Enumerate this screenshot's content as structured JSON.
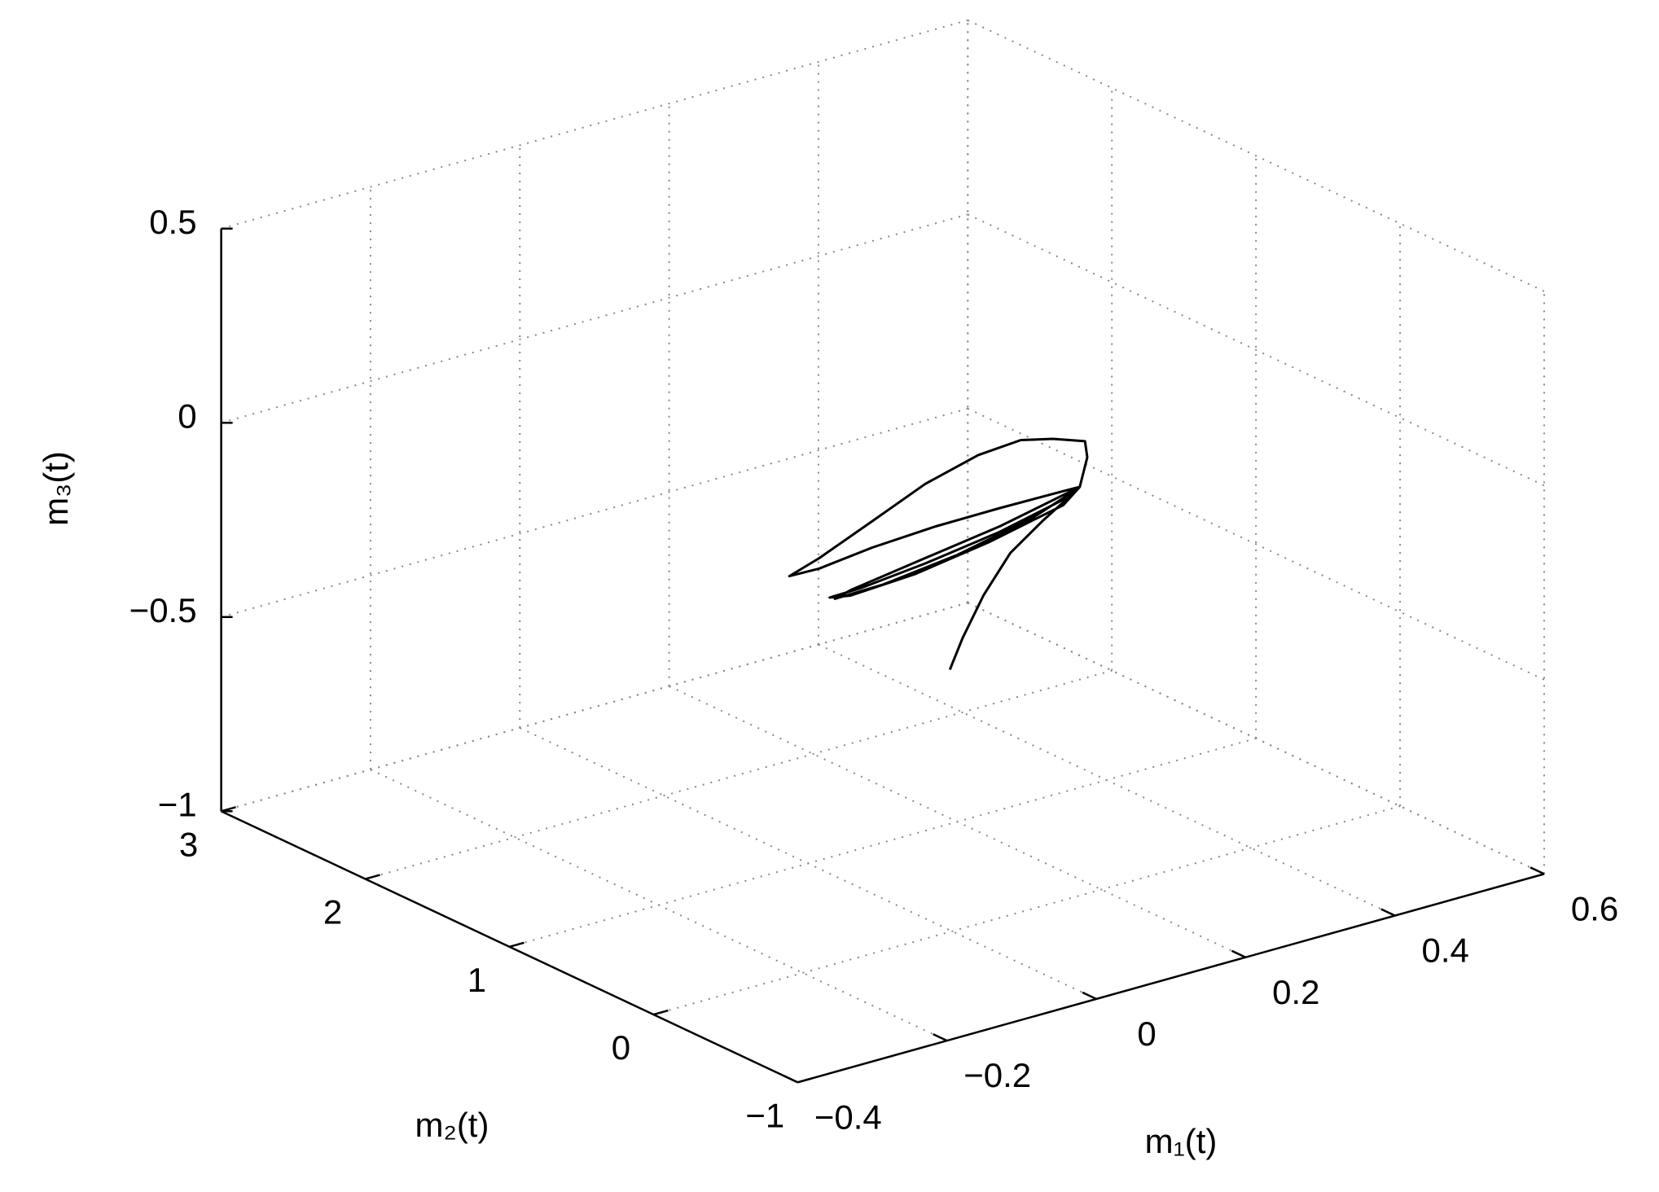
{
  "chart_data": {
    "type": "line3d",
    "xlabel": "m₁(t)",
    "ylabel": "m₂(t)",
    "zlabel": "m₃(t)",
    "xlim": [
      -0.4,
      0.6
    ],
    "ylim": [
      -1,
      3
    ],
    "zlim": [
      -1,
      0.5
    ],
    "xticks": [
      {
        "value": -0.4,
        "label": "−0.4"
      },
      {
        "value": -0.2,
        "label": "−0.2"
      },
      0,
      0.2,
      0.4,
      0.6
    ],
    "yticks": [
      {
        "value": -1,
        "label": "−1"
      },
      0,
      1,
      2,
      3
    ],
    "zticks": [
      {
        "value": -1,
        "label": "−1"
      },
      {
        "value": -0.5,
        "label": "−0.5"
      },
      0,
      0.5
    ],
    "grid": true,
    "color": "#000000",
    "x": [
      0.19,
      0.207,
      0.235,
      0.271,
      0.314,
      0.349,
      0.364,
      0.374,
      0.371,
      0.328,
      0.285,
      0.228,
      0.157,
      0.086,
      0.015,
      -0.025,
      0.015,
      0.086,
      0.171,
      0.257,
      0.342,
      0.364,
      0.342,
      0.257,
      0.157,
      0.072,
      0.029,
      0.057,
      0.143,
      0.242,
      0.342,
      0.364,
      0.257,
      0.157,
      0.057,
      0.036,
      0.1,
      0.2,
      0.299,
      0.356
    ],
    "y": [
      1,
      1,
      1,
      1,
      1,
      1,
      1,
      1,
      1,
      1,
      1,
      1,
      1,
      1,
      1,
      1,
      1,
      1,
      1,
      1,
      1,
      1,
      1,
      1,
      1,
      1,
      1,
      1,
      1,
      1,
      1,
      1,
      1,
      1,
      1,
      1,
      1,
      1,
      1,
      1
    ],
    "z": [
      -0.603,
      -0.531,
      -0.436,
      -0.346,
      -0.287,
      -0.245,
      -0.226,
      -0.155,
      -0.112,
      -0.083,
      -0.063,
      -0.071,
      -0.107,
      -0.165,
      -0.222,
      -0.247,
      -0.249,
      -0.233,
      -0.224,
      -0.223,
      -0.225,
      -0.226,
      -0.247,
      -0.284,
      -0.312,
      -0.329,
      -0.331,
      -0.341,
      -0.332,
      -0.303,
      -0.261,
      -0.226,
      -0.27,
      -0.298,
      -0.327,
      -0.338,
      -0.336,
      -0.313,
      -0.273,
      -0.233
    ]
  }
}
